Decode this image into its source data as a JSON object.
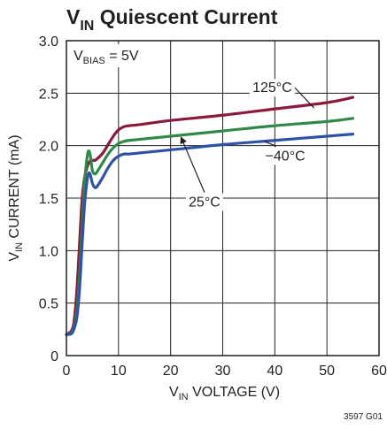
{
  "figure": {
    "title_main": "V",
    "title_sub": "IN",
    "title_rest": " Quiescent Current",
    "figure_code": "3597 G01"
  },
  "chart_data": {
    "type": "line",
    "xlabel_main": "V",
    "xlabel_sub": "IN",
    "xlabel_rest": " VOLTAGE (V)",
    "ylabel_main": "V",
    "ylabel_sub": "IN",
    "ylabel_rest": " CURRENT (mA)",
    "xlim": [
      0,
      60
    ],
    "ylim": [
      0,
      3.0
    ],
    "xticks": [
      "0",
      "10",
      "20",
      "30",
      "40",
      "50",
      "60"
    ],
    "yticks": [
      "0",
      "0.5",
      "1.0",
      "1.5",
      "2.0",
      "2.5",
      "3.0"
    ],
    "grid": true,
    "condition": {
      "main": "V",
      "sub": "BIAS",
      "rest": " = 5V"
    },
    "series": [
      {
        "name": "125°C",
        "color": "#8b1a3a",
        "x": [
          0,
          1,
          1.5,
          2,
          2.5,
          3,
          3.5,
          4,
          4.5,
          5,
          5.5,
          6,
          7,
          8,
          9,
          10,
          11,
          12,
          14,
          20,
          30,
          40,
          50,
          55
        ],
        "y": [
          0.2,
          0.24,
          0.34,
          0.62,
          1.05,
          1.48,
          1.7,
          1.8,
          1.85,
          1.86,
          1.86,
          1.88,
          1.93,
          2.01,
          2.09,
          2.15,
          2.18,
          2.19,
          2.2,
          2.24,
          2.29,
          2.35,
          2.41,
          2.46
        ]
      },
      {
        "name": "25°C",
        "color": "#2f8a47",
        "x": [
          0,
          1,
          1.5,
          2,
          2.5,
          3,
          3.5,
          4,
          4.3,
          4.6,
          5,
          5.5,
          6,
          7,
          8,
          9,
          10,
          11,
          12,
          14,
          20,
          30,
          40,
          50,
          55
        ],
        "y": [
          0.2,
          0.22,
          0.28,
          0.42,
          0.75,
          1.2,
          1.65,
          1.9,
          1.95,
          1.9,
          1.76,
          1.73,
          1.76,
          1.84,
          1.92,
          1.98,
          2.02,
          2.04,
          2.05,
          2.06,
          2.09,
          2.14,
          2.19,
          2.23,
          2.26
        ]
      },
      {
        "name": "−40°C",
        "color": "#2e53a6",
        "x": [
          0,
          1,
          1.5,
          2,
          2.5,
          3,
          3.5,
          4,
          4.3,
          4.6,
          5,
          5.5,
          6,
          7,
          8,
          9,
          10,
          11,
          12,
          14,
          20,
          30,
          40,
          50,
          55
        ],
        "y": [
          0.2,
          0.21,
          0.26,
          0.36,
          0.62,
          1.05,
          1.45,
          1.68,
          1.74,
          1.72,
          1.64,
          1.6,
          1.62,
          1.7,
          1.79,
          1.86,
          1.9,
          1.92,
          1.92,
          1.93,
          1.96,
          2.01,
          2.05,
          2.09,
          2.11
        ]
      }
    ],
    "annotations": [
      {
        "text": "125°C",
        "x": 39.5,
        "y": 2.51
      },
      {
        "text": "−40°C",
        "x": 42.0,
        "y": 1.86
      },
      {
        "text": "25°C",
        "x": 26.5,
        "y": 1.42
      }
    ]
  }
}
